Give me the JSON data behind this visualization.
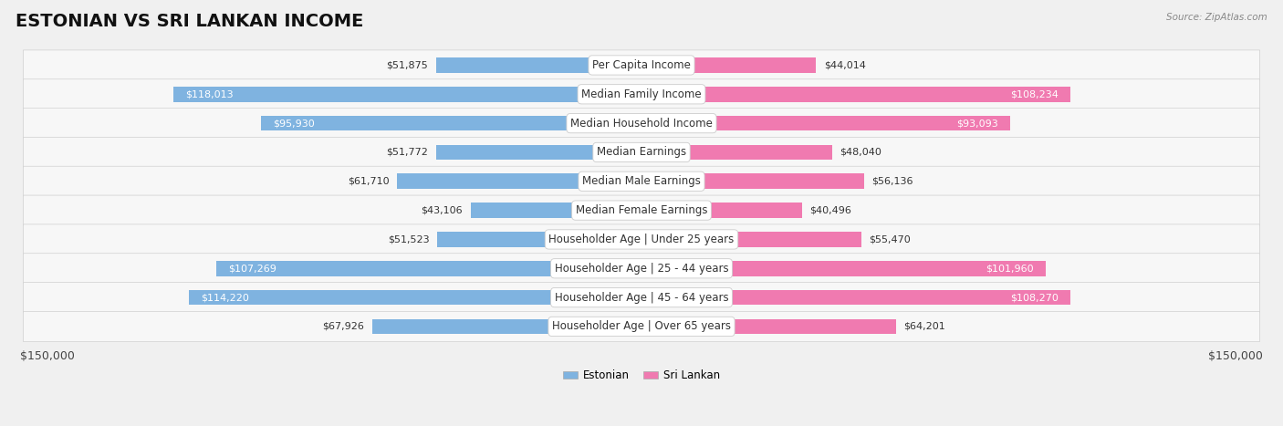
{
  "title": "ESTONIAN VS SRI LANKAN INCOME",
  "source": "Source: ZipAtlas.com",
  "categories": [
    "Per Capita Income",
    "Median Family Income",
    "Median Household Income",
    "Median Earnings",
    "Median Male Earnings",
    "Median Female Earnings",
    "Householder Age | Under 25 years",
    "Householder Age | 25 - 44 years",
    "Householder Age | 45 - 64 years",
    "Householder Age | Over 65 years"
  ],
  "estonian": [
    51875,
    118013,
    95930,
    51772,
    61710,
    43106,
    51523,
    107269,
    114220,
    67926
  ],
  "srilankan": [
    44014,
    108234,
    93093,
    48040,
    56136,
    40496,
    55470,
    101960,
    108270,
    64201
  ],
  "max_val": 150000,
  "estonian_color": "#7fb3e0",
  "srilankan_color": "#f07ab0",
  "estonian_label": "Estonian",
  "srilankan_label": "Sri Lankan",
  "bg_color": "#f0f0f0",
  "row_bg_light": "#f7f7f7",
  "row_bg_dark": "#ebebeb",
  "bar_height": 0.52,
  "title_fontsize": 14,
  "label_fontsize": 8.5,
  "value_fontsize": 8,
  "axis_label_fontsize": 9
}
